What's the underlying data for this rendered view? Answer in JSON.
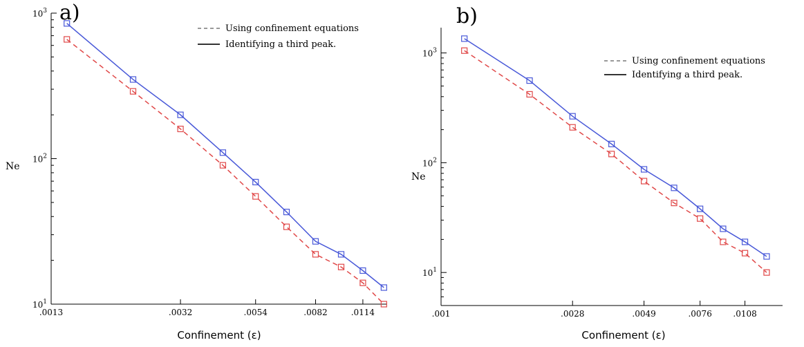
{
  "chart_data": [
    {
      "type": "line",
      "panel_label": "a)",
      "xlabel": "Confinement (ε)",
      "ylabel": "Ne",
      "xscale": "log",
      "yscale": "log",
      "xlim": [
        0.0013,
        0.0135
      ],
      "ylim": [
        10,
        1000
      ],
      "xticks": [
        0.0013,
        0.0032,
        0.0054,
        0.0082,
        0.0114
      ],
      "xtick_labels": [
        ".0013",
        ".0032",
        ".0054",
        ".0082",
        ".0114"
      ],
      "yticks": [
        10,
        100,
        1000
      ],
      "ytick_labels": [
        {
          "base": "10",
          "exp": "1"
        },
        {
          "base": "10",
          "exp": "2"
        },
        {
          "base": "10",
          "exp": "3"
        }
      ],
      "legend_position": "top-right",
      "series": [
        {
          "name": "Using confinement equations",
          "style": "dashed",
          "color": "#e04848",
          "x": [
            0.00145,
            0.0023,
            0.0032,
            0.0043,
            0.0054,
            0.0067,
            0.0082,
            0.0098,
            0.0114,
            0.0132
          ],
          "y": [
            660,
            290,
            160,
            90,
            55,
            34,
            22,
            18,
            14,
            10
          ]
        },
        {
          "name": "Identifying a third peak.",
          "style": "solid",
          "color": "#4858d8",
          "x": [
            0.00145,
            0.0023,
            0.0032,
            0.0043,
            0.0054,
            0.0067,
            0.0082,
            0.0098,
            0.0114,
            0.0132
          ],
          "y": [
            850,
            350,
            200,
            110,
            69,
            43,
            27,
            22,
            17,
            13
          ]
        }
      ]
    },
    {
      "type": "line",
      "panel_label": "b)",
      "xlabel": "Confinement (ε)",
      "ylabel": "Ne",
      "xscale": "log",
      "yscale": "log",
      "xlim": [
        0.001,
        0.0145
      ],
      "ylim": [
        5,
        1700
      ],
      "xticks": [
        0.001,
        0.0028,
        0.0049,
        0.0076,
        0.0108
      ],
      "xtick_labels": [
        ".001",
        ".0028",
        ".0049",
        ".0076",
        ".0108"
      ],
      "yticks": [
        10,
        100,
        1000
      ],
      "ytick_labels": [
        {
          "base": "10",
          "exp": "1"
        },
        {
          "base": "10",
          "exp": "2"
        },
        {
          "base": "10",
          "exp": "3"
        }
      ],
      "legend_position": "top-right",
      "series": [
        {
          "name": "Using confinement equations",
          "style": "dashed",
          "color": "#e04848",
          "x": [
            0.0012,
            0.002,
            0.0028,
            0.0038,
            0.0049,
            0.0062,
            0.0076,
            0.0091,
            0.0108,
            0.0128
          ],
          "y": [
            1050,
            420,
            210,
            120,
            68,
            43,
            31,
            19,
            15,
            10
          ]
        },
        {
          "name": "Identifying a third peak.",
          "style": "solid",
          "color": "#4858d8",
          "x": [
            0.0012,
            0.002,
            0.0028,
            0.0038,
            0.0049,
            0.0062,
            0.0076,
            0.0091,
            0.0108,
            0.0128
          ],
          "y": [
            1350,
            560,
            265,
            148,
            87,
            59,
            38,
            25,
            19,
            14
          ]
        }
      ]
    }
  ]
}
